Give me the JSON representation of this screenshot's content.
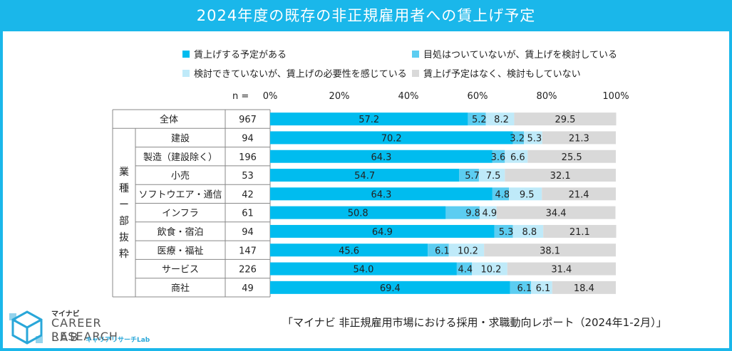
{
  "title": "2024年度の既存の非正規雇用者への賃上げ予定",
  "colors": {
    "frame": "#1ab7ea",
    "series": [
      "#00bcef",
      "#5ccdf1",
      "#bfeaf9",
      "#d9d9d9"
    ]
  },
  "chart_data": {
    "type": "bar",
    "orientation": "horizontal",
    "stacked": true,
    "percent": true,
    "xlim": [
      0,
      100
    ],
    "x_ticks": [
      "0%",
      "20%",
      "40%",
      "60%",
      "80%",
      "100%"
    ],
    "n_label": "n =",
    "group_label": "業種 一部抜粋",
    "group_label_chars": [
      "業",
      "種",
      "ー",
      "部",
      "抜",
      "粋"
    ],
    "legend": [
      "賃上げする予定がある",
      "目処はついていないが、賃上げを検討している",
      "検討できていないが、賃上げの必要性を感じている",
      "賃上げ予定はなく、検討もしていない"
    ],
    "categories": [
      "全体",
      "建設",
      "製造（建設除く）",
      "小売",
      "ソフトウエア・通信",
      "インフラ",
      "飲食・宿泊",
      "医療・福祉",
      "サービス",
      "商社"
    ],
    "n": [
      "967",
      "94",
      "196",
      "53",
      "42",
      "61",
      "94",
      "147",
      "226",
      "49"
    ],
    "series": [
      {
        "name": "賃上げする予定がある",
        "values": [
          57.2,
          70.2,
          64.3,
          54.7,
          64.3,
          50.8,
          64.9,
          45.6,
          54.0,
          69.4
        ],
        "labels": [
          "57.2",
          "70.2",
          "64.3",
          "54.7",
          "64.3",
          "50.8",
          "64.9",
          "45.6",
          "54.0",
          "69.4"
        ]
      },
      {
        "name": "目処はついていないが、賃上げを検討している",
        "values": [
          5.2,
          3.2,
          3.6,
          5.7,
          4.8,
          9.8,
          5.3,
          6.1,
          4.4,
          6.1
        ],
        "labels": [
          "5.2",
          "3.2",
          "3.6",
          "5.7",
          "4.8",
          "9.8",
          "5.3",
          "6.1",
          "4.4",
          "6.1"
        ]
      },
      {
        "name": "検討できていないが、賃上げの必要性を感じている",
        "values": [
          8.2,
          5.3,
          6.6,
          7.5,
          9.5,
          4.9,
          8.8,
          10.2,
          10.2,
          6.1
        ],
        "labels": [
          "8.2",
          "5.3",
          "6.6",
          "7.5",
          "9.5",
          "4.9",
          "8.8",
          "10.2",
          "10.2",
          "6.1"
        ]
      },
      {
        "name": "賃上げ予定はなく、検討もしていない",
        "values": [
          29.5,
          21.3,
          25.5,
          32.1,
          21.4,
          34.4,
          21.1,
          38.1,
          31.4,
          18.4
        ],
        "labels": [
          "29.5",
          "21.3",
          "25.5",
          "32.1",
          "21.4",
          "34.4",
          "21.1",
          "38.1",
          "31.4",
          "18.4"
        ]
      }
    ]
  },
  "footer": {
    "source": "「マイナビ 非正規雇用市場における採用・求職動向レポート（2024年1-2月）」"
  },
  "logo": {
    "small": "マイナビ",
    "main": "CAREER RESEARCH",
    "lab": "LAB",
    "sub": "キャリアリサーチLab"
  }
}
